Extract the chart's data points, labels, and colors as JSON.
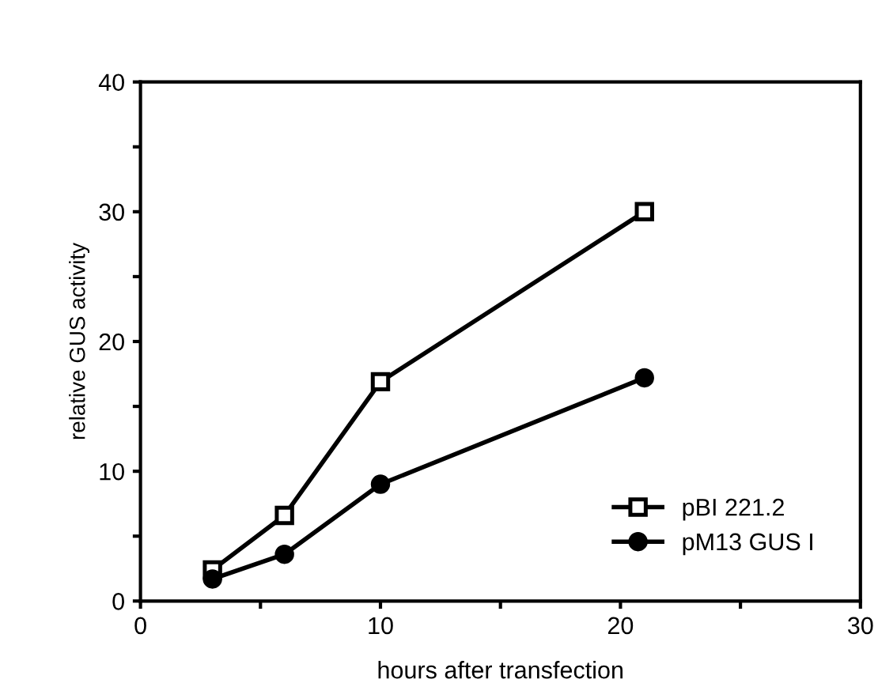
{
  "chart_data": {
    "type": "line",
    "xlabel": "hours after transfection",
    "ylabel": "relative GUS activity",
    "xlim": [
      0,
      30
    ],
    "ylim": [
      0,
      40
    ],
    "xticks": [
      0,
      {
        "value": 5,
        "label": null
      },
      10,
      {
        "value": 15,
        "label": null
      },
      20,
      {
        "value": 25,
        "label": null
      },
      30
    ],
    "yticks": [
      0,
      {
        "value": 5,
        "label": null
      },
      10,
      {
        "value": 15,
        "label": null
      },
      20,
      {
        "value": 25,
        "label": null
      },
      30,
      {
        "value": 35,
        "label": null
      },
      40
    ],
    "grid": false,
    "legend": "bottom right",
    "line_style": "solid",
    "series": [
      {
        "name": "pBI 221.2",
        "color": "#000000",
        "marker": "square",
        "x": [
          3,
          6,
          10,
          21
        ],
        "values": [
          2.4,
          6.6,
          16.9,
          30
        ]
      },
      {
        "name": "pM13 GUS I",
        "color": "#000000",
        "marker": "circle",
        "x": [
          3,
          6,
          10,
          21
        ],
        "values": [
          1.7,
          3.6,
          9.0,
          17.2
        ]
      }
    ]
  }
}
